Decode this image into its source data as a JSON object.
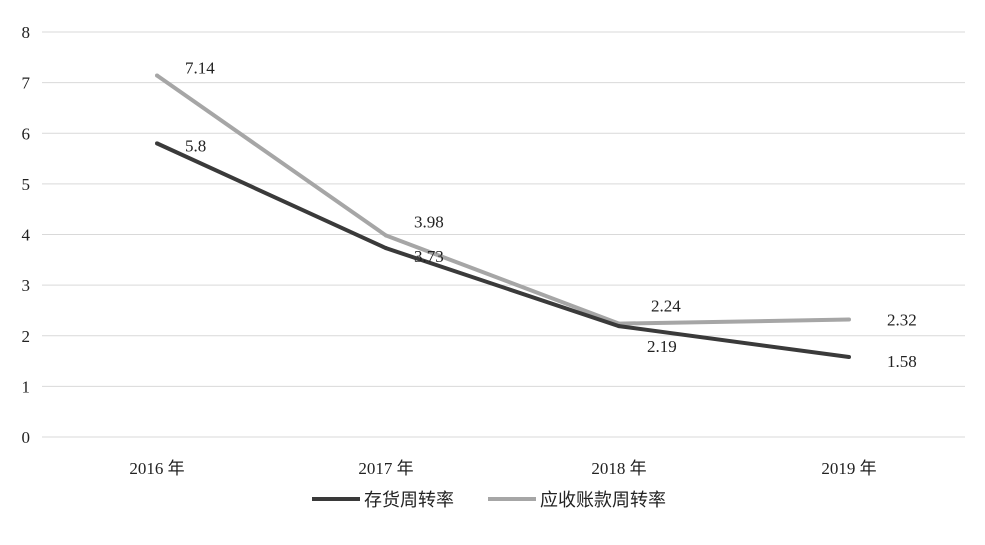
{
  "chart_data": {
    "type": "line",
    "title": "",
    "xlabel": "",
    "ylabel": "",
    "categories": [
      "2016 年",
      "2017 年",
      "2018 年",
      "2019 年"
    ],
    "y_ticks": [
      "0",
      "1",
      "2",
      "3",
      "4",
      "5",
      "6",
      "7",
      "8"
    ],
    "ylim": [
      0,
      8
    ],
    "grid": true,
    "legend_position": "bottom",
    "series": [
      {
        "name": "存货周转率",
        "color": "#3a3a3a",
        "values": [
          5.8,
          3.73,
          2.19,
          1.58
        ],
        "labels": [
          "5.8",
          "3.73",
          "2.19",
          "1.58"
        ]
      },
      {
        "name": "应收账款周转率",
        "color": "#a6a6a6",
        "values": [
          7.14,
          3.98,
          2.24,
          2.32
        ],
        "labels": [
          "7.14",
          "3.98",
          "2.24",
          "2.32"
        ]
      }
    ]
  }
}
